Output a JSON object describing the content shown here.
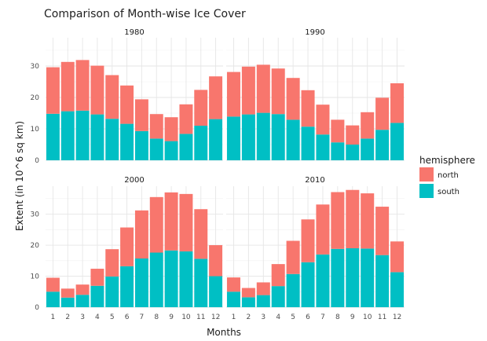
{
  "chart_data": {
    "type": "bar",
    "stacked": true,
    "title": "Comparison of Month-wise Ice Cover",
    "xlabel": "Months",
    "ylabel": "Extent (in 10^6 sq km)",
    "ylim": [
      0,
      39
    ],
    "yticks": [
      0,
      10,
      20,
      30
    ],
    "categories": [
      "1",
      "2",
      "3",
      "4",
      "5",
      "6",
      "7",
      "8",
      "9",
      "10",
      "11",
      "12"
    ],
    "grid": true,
    "legend": {
      "title": "hemisphere",
      "position": "right",
      "entries": [
        {
          "name": "north",
          "color": "#F8766D"
        },
        {
          "name": "south",
          "color": "#00BFC4"
        }
      ]
    },
    "facets": [
      {
        "label": "1980",
        "series": [
          {
            "name": "south",
            "values": [
              14.8,
              15.6,
              15.8,
              14.6,
              13.2,
              11.6,
              9.3,
              6.9,
              6.1,
              8.4,
              11.0,
              13.1
            ]
          },
          {
            "name": "north",
            "values": [
              14.8,
              15.7,
              16.1,
              15.5,
              13.9,
              12.2,
              10.1,
              7.8,
              7.6,
              9.4,
              11.4,
              13.6
            ]
          }
        ]
      },
      {
        "label": "1990",
        "series": [
          {
            "name": "south",
            "values": [
              13.9,
              14.6,
              15.1,
              14.7,
              12.9,
              10.7,
              8.2,
              5.7,
              5.0,
              6.9,
              9.7,
              11.9
            ]
          },
          {
            "name": "north",
            "values": [
              14.2,
              15.2,
              15.3,
              14.5,
              13.3,
              11.6,
              9.5,
              7.2,
              6.1,
              8.4,
              10.2,
              12.6
            ]
          }
        ]
      },
      {
        "label": "2000",
        "series": [
          {
            "name": "south",
            "values": [
              5.0,
              3.1,
              4.0,
              6.9,
              9.9,
              13.2,
              15.7,
              17.6,
              18.3,
              18.0,
              15.6,
              10.0
            ]
          },
          {
            "name": "north",
            "values": [
              4.5,
              2.9,
              3.3,
              5.5,
              8.8,
              12.5,
              15.5,
              17.9,
              18.7,
              18.5,
              16.0,
              10.0
            ]
          }
        ]
      },
      {
        "label": "2010",
        "series": [
          {
            "name": "south",
            "values": [
              5.0,
              3.2,
              3.9,
              6.8,
              10.7,
              14.5,
              17.0,
              18.8,
              19.0,
              18.9,
              16.8,
              11.3
            ]
          },
          {
            "name": "north",
            "values": [
              4.6,
              3.0,
              4.1,
              7.1,
              10.7,
              13.8,
              16.1,
              18.3,
              18.8,
              17.8,
              15.6,
              9.9
            ]
          }
        ]
      }
    ]
  }
}
